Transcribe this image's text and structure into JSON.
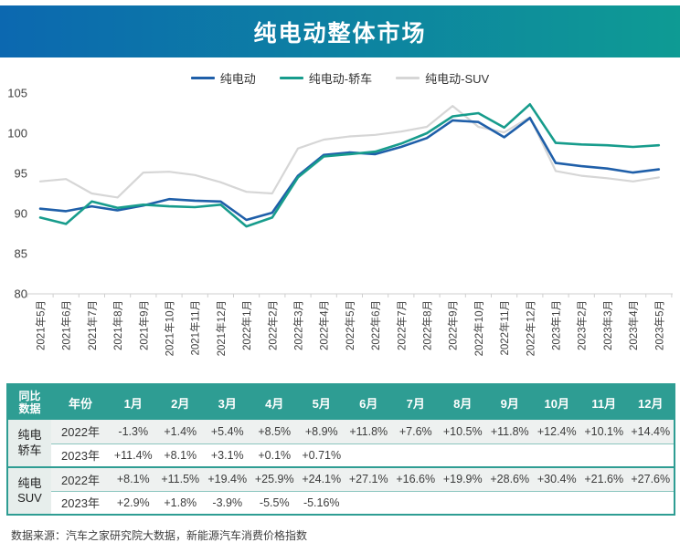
{
  "colors": {
    "accent_teal": "#2E9D93",
    "header_gradient_start": "#0C68B0",
    "header_gradient_end": "#0E9B94",
    "axis_text": "#404040",
    "row_light_bg": "#EEF1F0",
    "label_cell_bg": "#E7EEEC"
  },
  "header": {
    "title": "纯电动整体市场"
  },
  "chart_data": {
    "type": "line",
    "title": "纯电动整体市场",
    "categories": [
      "2021年5月",
      "2021年6月",
      "2021年7月",
      "2021年8月",
      "2021年9月",
      "2021年10月",
      "2021年11月",
      "2021年12月",
      "2022年1月",
      "2022年2月",
      "2022年3月",
      "2022年4月",
      "2022年5月",
      "2022年6月",
      "2022年7月",
      "2022年8月",
      "2022年9月",
      "2022年10月",
      "2022年11月",
      "2022年12月",
      "2023年1月",
      "2023年2月",
      "2023年3月",
      "2023年4月",
      "2023年5月"
    ],
    "series": [
      {
        "name": "纯电动",
        "color": "#1F5FA9",
        "width": 2.6,
        "values": [
          90.6,
          90.3,
          90.9,
          90.4,
          91.0,
          91.8,
          91.6,
          91.5,
          89.2,
          90.1,
          94.7,
          97.3,
          97.6,
          97.4,
          98.3,
          99.4,
          101.6,
          101.4,
          99.5,
          101.9,
          96.3,
          95.9,
          95.6,
          95.1,
          95.5
        ]
      },
      {
        "name": "纯电动-轿车",
        "color": "#179C8C",
        "width": 2.6,
        "values": [
          89.5,
          88.7,
          91.5,
          90.7,
          91.1,
          90.9,
          90.8,
          91.1,
          88.4,
          89.5,
          94.5,
          97.1,
          97.4,
          97.7,
          98.7,
          100.0,
          102.1,
          102.5,
          100.7,
          103.6,
          98.8,
          98.6,
          98.5,
          98.3,
          98.5
        ]
      },
      {
        "name": "纯电动-SUV",
        "color": "#D6D6D6",
        "width": 2.2,
        "values": [
          94.0,
          94.3,
          92.5,
          92.0,
          95.1,
          95.2,
          94.8,
          93.9,
          92.7,
          92.5,
          98.1,
          99.2,
          99.6,
          99.8,
          100.2,
          100.8,
          103.4,
          100.8,
          100.1,
          102.0,
          95.3,
          94.7,
          94.4,
          94.0,
          94.5
        ]
      }
    ],
    "ylim": [
      80,
      105
    ],
    "yticks": [
      80,
      85,
      90,
      95,
      100,
      105
    ],
    "grid": false,
    "legend_position": "top"
  },
  "table": {
    "corner_lines": [
      "同比",
      "数据"
    ],
    "year_header": "年份",
    "month_headers": [
      "1月",
      "2月",
      "3月",
      "4月",
      "5月",
      "6月",
      "7月",
      "8月",
      "9月",
      "10月",
      "11月",
      "12月"
    ],
    "groups": [
      {
        "label_lines": [
          "纯电",
          "轿车"
        ],
        "rows": [
          {
            "year": "2022年",
            "values": [
              "-1.3%",
              "+1.4%",
              "+5.4%",
              "+8.5%",
              "+8.9%",
              "+11.8%",
              "+7.6%",
              "+10.5%",
              "+11.8%",
              "+12.4%",
              "+10.1%",
              "+14.4%"
            ]
          },
          {
            "year": "2023年",
            "values": [
              "+11.4%",
              "+8.1%",
              "+3.1%",
              "+0.1%",
              "+0.71%",
              "",
              "",
              "",
              "",
              "",
              "",
              ""
            ]
          }
        ]
      },
      {
        "label_lines": [
          "纯电",
          "SUV"
        ],
        "rows": [
          {
            "year": "2022年",
            "values": [
              "+8.1%",
              "+11.5%",
              "+19.4%",
              "+25.9%",
              "+24.1%",
              "+27.1%",
              "+16.6%",
              "+19.9%",
              "+28.6%",
              "+30.4%",
              "+21.6%",
              "+27.6%"
            ]
          },
          {
            "year": "2023年",
            "values": [
              "+2.9%",
              "+1.8%",
              "-3.9%",
              "-5.5%",
              "-5.16%",
              "",
              "",
              "",
              "",
              "",
              "",
              ""
            ]
          }
        ]
      }
    ]
  },
  "footer": {
    "source": "数据来源：汽车之家研究院大数据，新能源汽车消费价格指数"
  }
}
